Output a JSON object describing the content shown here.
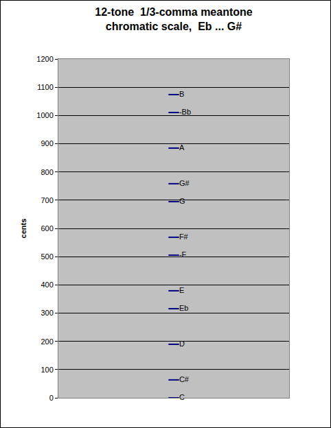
{
  "chart_data": {
    "type": "scatter",
    "title": "12-tone  1/3-comma meantone\nchromatic scale,  Eb ... G#",
    "y_label": "cents",
    "labels": [
      "C",
      "C#",
      "D",
      "Eb",
      "E",
      "-F",
      "F#",
      "G",
      "G#",
      "A",
      "-Bb",
      "B"
    ],
    "values": [
      0,
      63.5,
      189.6,
      315.6,
      379.1,
      505.2,
      568.7,
      694.8,
      758.3,
      884.4,
      1010.4,
      1073.9
    ],
    "color": "#000080",
    "marker": "line-ew",
    "ylim": [
      0,
      1200
    ],
    "yticks": [
      0,
      100,
      200,
      300,
      400,
      500,
      600,
      700,
      800,
      900,
      1000,
      1100,
      1200
    ],
    "grid": true,
    "tick_labels": "y"
  }
}
